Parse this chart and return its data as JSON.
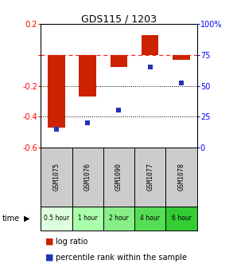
{
  "title": "GDS115 / 1203",
  "samples": [
    "GSM1075",
    "GSM1076",
    "GSM1090",
    "GSM1077",
    "GSM1078"
  ],
  "time_labels": [
    "0.5 hour",
    "1 hour",
    "2 hour",
    "4 hour",
    "6 hour"
  ],
  "log_ratio": [
    -0.47,
    -0.27,
    -0.08,
    0.13,
    -0.03
  ],
  "percentile": [
    15,
    20,
    30,
    65,
    52
  ],
  "bar_color": "#cc2200",
  "dot_color": "#2233bb",
  "ylim_left": [
    -0.6,
    0.2
  ],
  "ylim_right": [
    0,
    100
  ],
  "yticks_left": [
    0.2,
    0.0,
    -0.2,
    -0.4,
    -0.6
  ],
  "yticks_right": [
    100,
    75,
    50,
    25,
    0
  ],
  "dotted_lines": [
    -0.2,
    -0.4
  ],
  "dashed_line": 0.0,
  "time_colors": [
    "#ddffdd",
    "#aaffaa",
    "#88ee88",
    "#55dd55",
    "#33cc33"
  ],
  "sample_bg": "#cccccc",
  "legend_log": "log ratio",
  "legend_pct": "percentile rank within the sample",
  "title_fontsize": 9,
  "tick_fontsize": 7,
  "sample_fontsize": 6,
  "time_fontsize": 5.5
}
